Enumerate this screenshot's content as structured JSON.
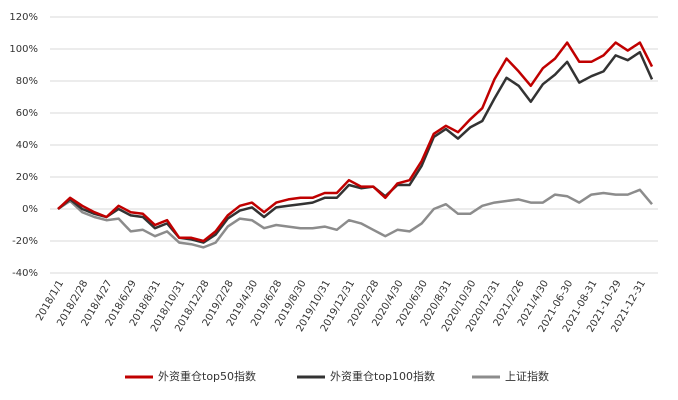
{
  "chart_data": {
    "type": "line",
    "categories": [
      "2018/1/1",
      null,
      "2018/2/28",
      null,
      "2018/4/27",
      null,
      "2018/6/29",
      null,
      "2018/8/31",
      null,
      "2018/10/31",
      null,
      "2018/12/28",
      null,
      "2019/2/28",
      null,
      "2019/4/30",
      null,
      "2019/6/28",
      null,
      "2019/8/30",
      null,
      "2019/10/31",
      null,
      "2019/12/31",
      null,
      "2020/2/28",
      null,
      "2020/4/30",
      null,
      "2020/6/30",
      null,
      "2020/8/31",
      null,
      "2020/10/30",
      null,
      "2020/12/31",
      null,
      "2021/2/26",
      null,
      "2021/4/30",
      null,
      "2021-06-30",
      null,
      "2021-08-31",
      null,
      "2021-10-29",
      null,
      "2021-12-31",
      null
    ],
    "series": [
      {
        "name": "外资重仓top50指数",
        "color": "#c00000",
        "values": [
          0,
          7,
          2,
          -2,
          -5,
          2,
          -2,
          -3,
          -10,
          -7,
          -18,
          -18,
          -20,
          -14,
          -4,
          2,
          4,
          -2,
          4,
          6,
          7,
          7,
          10,
          10,
          18,
          14,
          14,
          7,
          16,
          18,
          30,
          47,
          52,
          48,
          56,
          63,
          81,
          94,
          86,
          77,
          88,
          94,
          104,
          92,
          92,
          96,
          104,
          99,
          104,
          89
        ]
      },
      {
        "name": "外资重仓top100指数",
        "color": "#333333",
        "values": [
          0,
          6,
          0,
          -3,
          -5,
          0,
          -4,
          -5,
          -12,
          -9,
          -18,
          -19,
          -21,
          -16,
          -6,
          -1,
          1,
          -5,
          1,
          2,
          3,
          4,
          7,
          7,
          15,
          13,
          14,
          8,
          15,
          15,
          27,
          45,
          50,
          44,
          51,
          55,
          69,
          82,
          77,
          67,
          78,
          84,
          92,
          79,
          83,
          86,
          96,
          93,
          98,
          81
        ]
      },
      {
        "name": "上证指数",
        "color": "#8c8c8c",
        "values": [
          0,
          5,
          -2,
          -5,
          -7,
          -6,
          -14,
          -13,
          -17,
          -14,
          -21,
          -22,
          -24,
          -21,
          -11,
          -6,
          -7,
          -12,
          -10,
          -11,
          -12,
          -12,
          -11,
          -13,
          -7,
          -9,
          -13,
          -17,
          -13,
          -14,
          -9,
          0,
          3,
          -3,
          -3,
          2,
          4,
          5,
          6,
          4,
          4,
          9,
          8,
          4,
          9,
          10,
          9,
          9,
          12,
          3
        ]
      }
    ],
    "ylim": [
      -40,
      120
    ],
    "yticks": [
      {
        "value": -40,
        "label": "-40%"
      },
      {
        "value": -20,
        "label": "-20%"
      },
      {
        "value": 0,
        "label": "0%"
      },
      {
        "value": 20,
        "label": "20%"
      },
      {
        "value": 40,
        "label": "40%"
      },
      {
        "value": 60,
        "label": "60%"
      },
      {
        "value": 80,
        "label": "80%"
      },
      {
        "value": 100,
        "label": "100%"
      },
      {
        "value": 120,
        "label": "120%"
      }
    ],
    "grid": true,
    "legend": "bottom"
  }
}
